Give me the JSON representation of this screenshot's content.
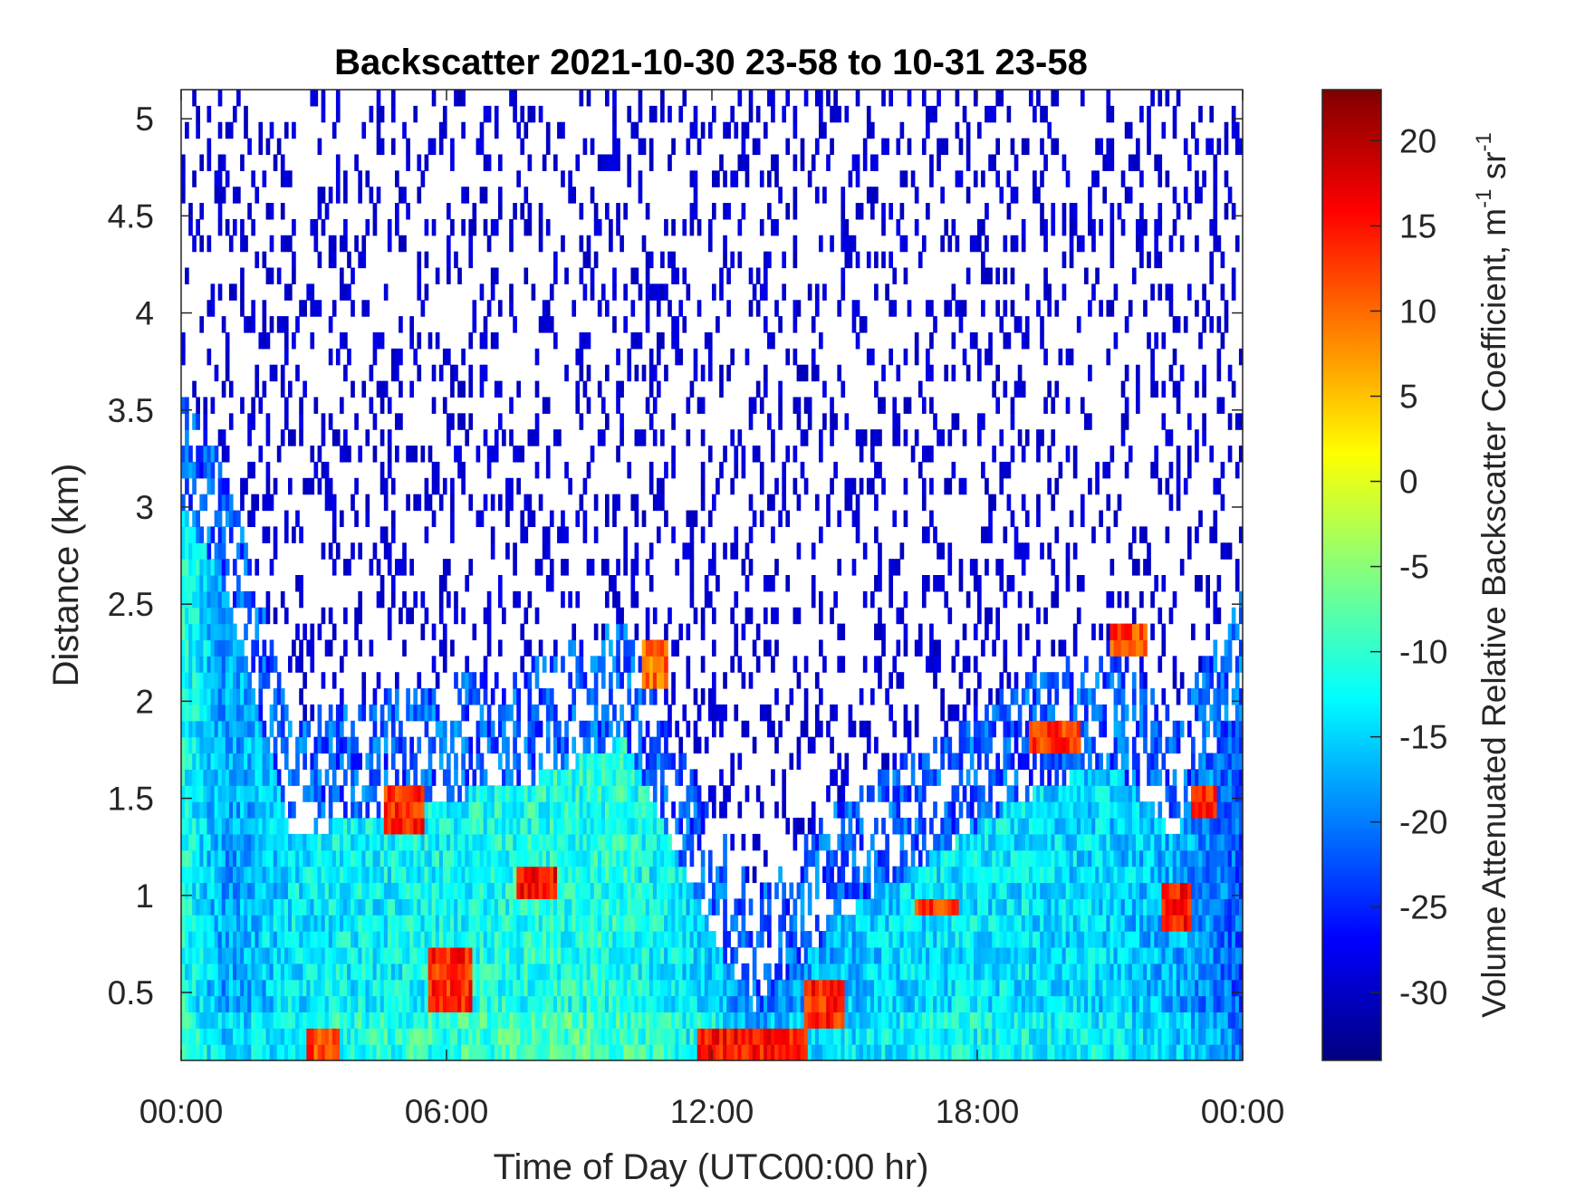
{
  "chart_data": {
    "type": "heatmap",
    "title": "Backscatter 2021-10-30 23-58 to 10-31 23-58",
    "xlabel": "Time of Day (UTC00:00 hr)",
    "ylabel": "Distance (km)",
    "colorbar_label": "Volume Attenuated Relative Backscatter Coefficient, m",
    "colorbar_unit_sup1": "-1",
    "colorbar_unit_sr": " sr",
    "colorbar_unit_sup2": "-1",
    "colormap": "jet",
    "xlim_hours": [
      0,
      24
    ],
    "ylim_km": [
      0.15,
      5.15
    ],
    "clim": [
      -34,
      23
    ],
    "x_ticks": [
      {
        "value": 0,
        "label": "00:00"
      },
      {
        "value": 6,
        "label": "06:00"
      },
      {
        "value": 12,
        "label": "12:00"
      },
      {
        "value": 18,
        "label": "18:00"
      },
      {
        "value": 24,
        "label": "00:00"
      }
    ],
    "y_ticks": [
      {
        "value": 0.5,
        "label": "0.5"
      },
      {
        "value": 1,
        "label": "1"
      },
      {
        "value": 1.5,
        "label": "1.5"
      },
      {
        "value": 2,
        "label": "2"
      },
      {
        "value": 2.5,
        "label": "2.5"
      },
      {
        "value": 3,
        "label": "3"
      },
      {
        "value": 3.5,
        "label": "3.5"
      },
      {
        "value": 4,
        "label": "4"
      },
      {
        "value": 4.5,
        "label": "4.5"
      },
      {
        "value": 5,
        "label": "5"
      }
    ],
    "colorbar_ticks": [
      {
        "value": 20,
        "label": "20"
      },
      {
        "value": 15,
        "label": "15"
      },
      {
        "value": 10,
        "label": "10"
      },
      {
        "value": 5,
        "label": "5"
      },
      {
        "value": 0,
        "label": "0"
      },
      {
        "value": -5,
        "label": "-5"
      },
      {
        "value": -10,
        "label": "-10"
      },
      {
        "value": -15,
        "label": "-15"
      },
      {
        "value": -20,
        "label": "-20"
      },
      {
        "value": -25,
        "label": "-25"
      },
      {
        "value": -30,
        "label": "-30"
      }
    ],
    "background_level_by_hour": [
      {
        "hour": 0.0,
        "top_km": 3.0,
        "value": -11
      },
      {
        "hour": 1.0,
        "top_km": 2.6,
        "value": -18
      },
      {
        "hour": 2.5,
        "top_km": 1.3,
        "value": -14
      },
      {
        "hour": 4.0,
        "top_km": 1.4,
        "value": -13
      },
      {
        "hour": 6.0,
        "top_km": 1.5,
        "value": -12
      },
      {
        "hour": 8.0,
        "top_km": 1.6,
        "value": -11
      },
      {
        "hour": 10.0,
        "top_km": 1.8,
        "value": -11
      },
      {
        "hour": 12.0,
        "top_km": 0.8,
        "value": -15
      },
      {
        "hour": 13.0,
        "top_km": 0.4,
        "value": -20
      },
      {
        "hour": 15.0,
        "top_km": 0.9,
        "value": -16
      },
      {
        "hour": 17.0,
        "top_km": 1.2,
        "value": -14
      },
      {
        "hour": 19.0,
        "top_km": 1.5,
        "value": -14
      },
      {
        "hour": 21.0,
        "top_km": 1.7,
        "value": -15
      },
      {
        "hour": 22.5,
        "top_km": 1.3,
        "value": -17
      },
      {
        "hour": 24.0,
        "top_km": 2.0,
        "value": -22
      }
    ],
    "strong_echo_features": [
      {
        "hour_start": 2.8,
        "hour_end": 3.6,
        "km_start": 0.15,
        "km_end": 0.3,
        "value": 12
      },
      {
        "hour_start": 4.6,
        "hour_end": 5.5,
        "km_start": 1.3,
        "km_end": 1.6,
        "value": 14
      },
      {
        "hour_start": 5.6,
        "hour_end": 6.6,
        "km_start": 0.4,
        "km_end": 0.7,
        "value": 14
      },
      {
        "hour_start": 7.6,
        "hour_end": 8.5,
        "km_start": 0.95,
        "km_end": 1.15,
        "value": 16
      },
      {
        "hour_start": 10.4,
        "hour_end": 11.0,
        "km_start": 2.1,
        "km_end": 2.3,
        "value": 10
      },
      {
        "hour_start": 11.7,
        "hour_end": 14.2,
        "km_start": 0.15,
        "km_end": 0.3,
        "value": 15
      },
      {
        "hour_start": 14.1,
        "hour_end": 15.0,
        "km_start": 0.35,
        "km_end": 0.55,
        "value": 14
      },
      {
        "hour_start": 16.6,
        "hour_end": 17.6,
        "km_start": 0.9,
        "km_end": 1.0,
        "value": 13
      },
      {
        "hour_start": 19.2,
        "hour_end": 20.3,
        "km_start": 1.7,
        "km_end": 1.9,
        "value": 13
      },
      {
        "hour_start": 21.0,
        "hour_end": 21.8,
        "km_start": 2.2,
        "km_end": 2.4,
        "value": 12
      },
      {
        "hour_start": 22.2,
        "hour_end": 22.8,
        "km_start": 0.8,
        "km_end": 1.1,
        "value": 15
      },
      {
        "hour_start": 22.8,
        "hour_end": 23.4,
        "km_start": 1.4,
        "km_end": 1.6,
        "value": 13
      }
    ],
    "grid": false
  }
}
